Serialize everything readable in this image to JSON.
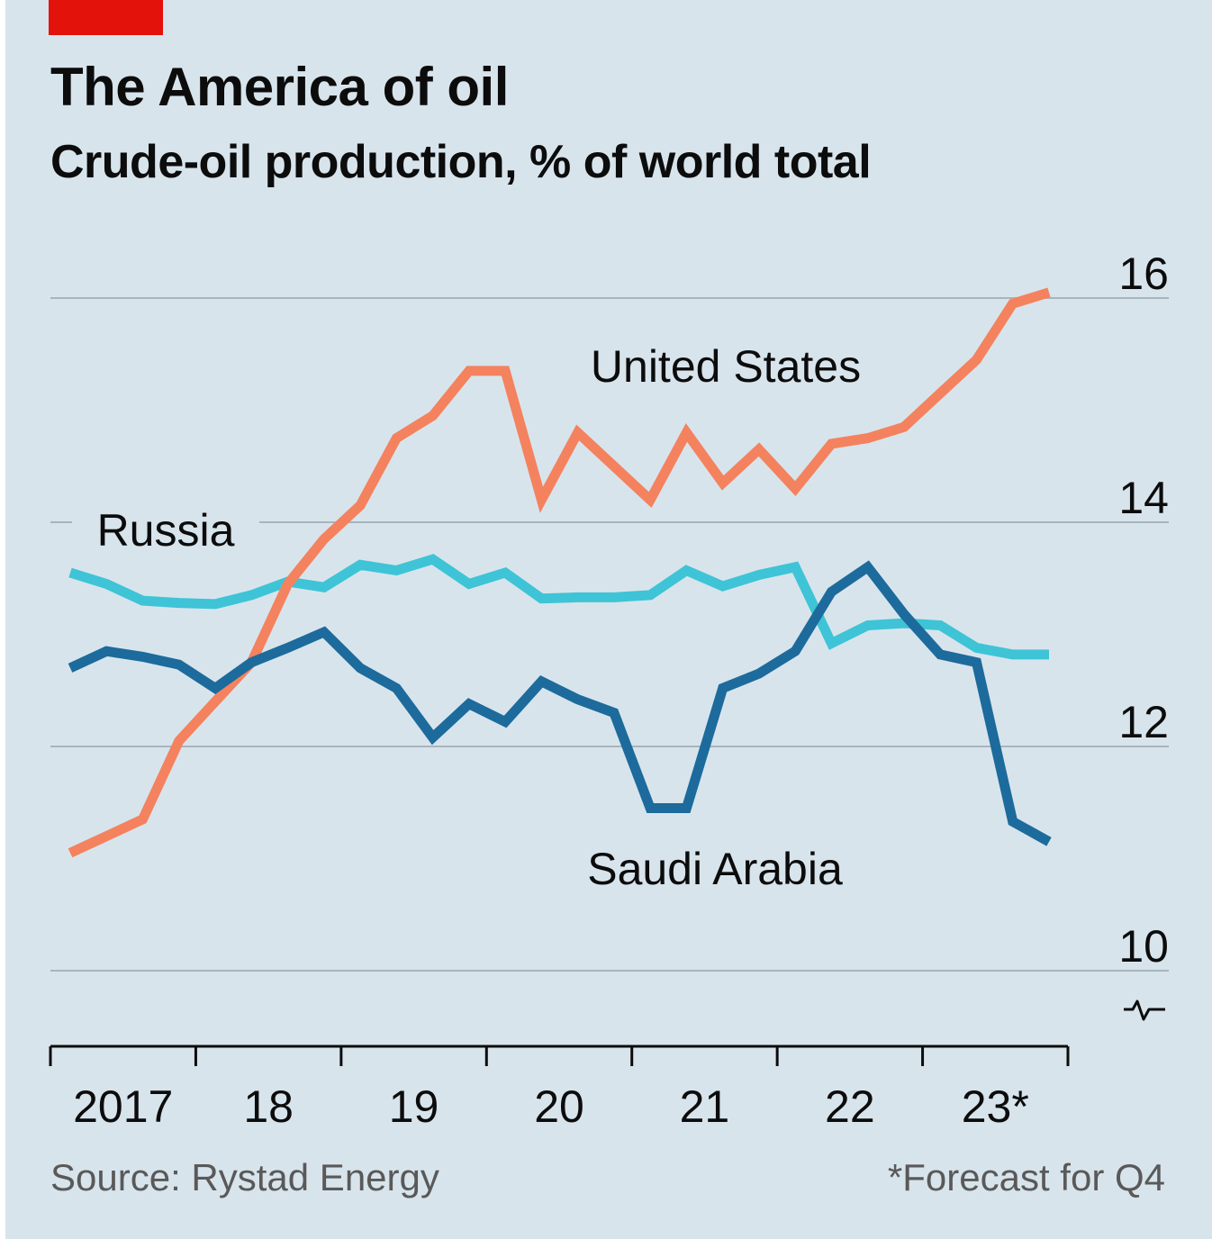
{
  "header": {
    "title": "The America of oil",
    "subtitle": "Crude-oil production, % of world total"
  },
  "footer": {
    "source": "Source: Rystad Energy",
    "footnote": "*Forecast for Q4"
  },
  "colors": {
    "background": "#d8e4ec",
    "accent_tag": "#e3120b",
    "united_states": "#f4825e",
    "russia": "#3ec4d6",
    "saudi_arabia": "#1c6b9c",
    "gridline": "#a9b5bd"
  },
  "chart_data": {
    "type": "line",
    "title": "The America of oil",
    "subtitle": "Crude-oil production, % of world total",
    "x": [
      2017.0,
      2017.25,
      2017.5,
      2017.75,
      2018.0,
      2018.25,
      2018.5,
      2018.75,
      2019.0,
      2019.25,
      2019.5,
      2019.75,
      2020.0,
      2020.25,
      2020.5,
      2020.75,
      2021.0,
      2021.25,
      2021.5,
      2021.75,
      2022.0,
      2022.25,
      2022.5,
      2022.75,
      2023.0,
      2023.25,
      2023.5,
      2023.75
    ],
    "x_tick_labels": [
      "2017",
      "18",
      "19",
      "20",
      "21",
      "22",
      "23*"
    ],
    "y_ticks": [
      10,
      12,
      14,
      16
    ],
    "ylim": [
      10,
      16
    ],
    "y_axis_side": "right",
    "y_axis_break": true,
    "grid": true,
    "series": [
      {
        "name": "United States",
        "color_key": "united_states",
        "values": [
          11.05,
          11.2,
          11.35,
          12.05,
          12.4,
          12.75,
          13.45,
          13.85,
          14.15,
          14.75,
          14.95,
          15.35,
          15.35,
          14.2,
          14.8,
          14.5,
          14.2,
          14.8,
          14.35,
          14.65,
          14.3,
          14.7,
          14.75,
          14.85,
          15.15,
          15.45,
          15.95,
          16.05
        ]
      },
      {
        "name": "Russia",
        "color_key": "russia",
        "values": [
          13.55,
          13.45,
          13.3,
          13.28,
          13.27,
          13.35,
          13.47,
          13.42,
          13.62,
          13.57,
          13.67,
          13.45,
          13.55,
          13.32,
          13.33,
          13.33,
          13.35,
          13.57,
          13.43,
          13.53,
          13.6,
          12.92,
          13.08,
          13.1,
          13.08,
          12.88,
          12.82,
          12.82
        ]
      },
      {
        "name": "Saudi Arabia",
        "color_key": "saudi_arabia",
        "values": [
          12.7,
          12.85,
          12.8,
          12.73,
          12.52,
          12.75,
          12.88,
          13.02,
          12.7,
          12.52,
          12.08,
          12.38,
          12.22,
          12.58,
          12.42,
          12.3,
          11.45,
          11.45,
          12.52,
          12.65,
          12.85,
          13.38,
          13.6,
          13.18,
          12.82,
          12.75,
          11.33,
          11.15
        ]
      }
    ],
    "annotations": [
      {
        "text": "United States",
        "series": "United States"
      },
      {
        "text": "Russia",
        "series": "Russia"
      },
      {
        "text": "Saudi Arabia",
        "series": "Saudi Arabia"
      }
    ],
    "legend": "none (direct labels)"
  }
}
